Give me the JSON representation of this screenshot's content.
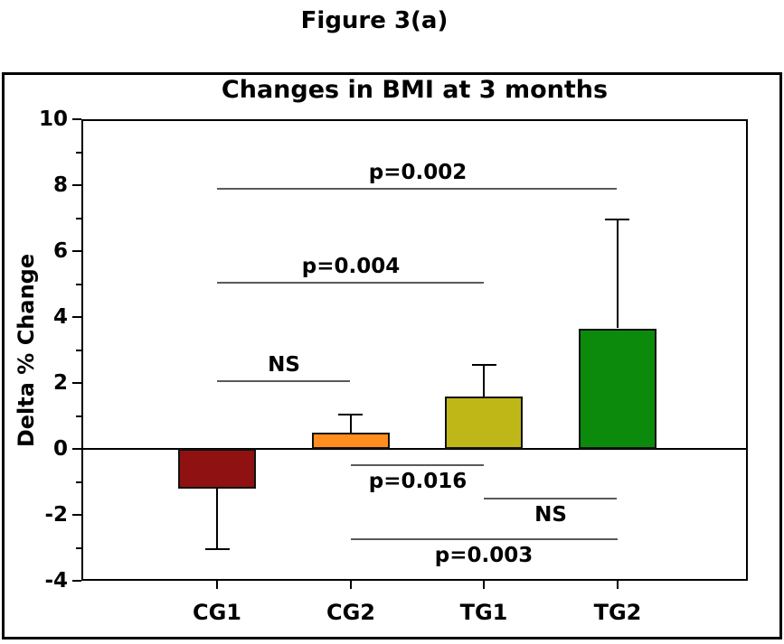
{
  "figure_label": "Figure 3(a)",
  "colors": {
    "background": "#ffffff",
    "axis": "#000000",
    "bar_border": "#111111",
    "sig_line": "#5a5a5a",
    "text": "#000000"
  },
  "chart_data": {
    "type": "bar",
    "title": "Changes in BMI at 3 months",
    "xlabel": "",
    "ylabel": "Delta % Change",
    "categories": [
      "CG1",
      "CG2",
      "TG1",
      "TG2"
    ],
    "values": [
      -1.2,
      0.5,
      1.6,
      3.65
    ],
    "error_to": [
      -3.05,
      1.05,
      2.55,
      6.95
    ],
    "bar_colors": [
      "#8F1111",
      "#FF8E1E",
      "#BFB718",
      "#0B8A0B"
    ],
    "ylim": [
      -4,
      10
    ],
    "ytick_step": 2,
    "ytick_labels": [
      "-4",
      "-2",
      "0",
      "2",
      "4",
      "6",
      "8",
      "10"
    ],
    "minor_tick_step": 1,
    "grid": false,
    "legend": null,
    "annotations": [
      {
        "label": "p=0.002",
        "from": "CG1",
        "to": "TG2",
        "y": 7.9,
        "label_side": "above"
      },
      {
        "label": "p=0.004",
        "from": "CG1",
        "to": "TG1",
        "y": 5.05,
        "label_side": "above"
      },
      {
        "label": "NS",
        "from": "CG1",
        "to": "CG2",
        "y": 2.05,
        "label_side": "above"
      },
      {
        "label": "p=0.016",
        "from": "CG2",
        "to": "TG1",
        "y": -0.5,
        "label_side": "below"
      },
      {
        "label": "NS",
        "from": "TG1",
        "to": "TG2",
        "y": -1.5,
        "label_side": "below"
      },
      {
        "label": "p=0.003",
        "from": "CG2",
        "to": "TG2",
        "y": -2.75,
        "label_side": "below"
      }
    ]
  }
}
